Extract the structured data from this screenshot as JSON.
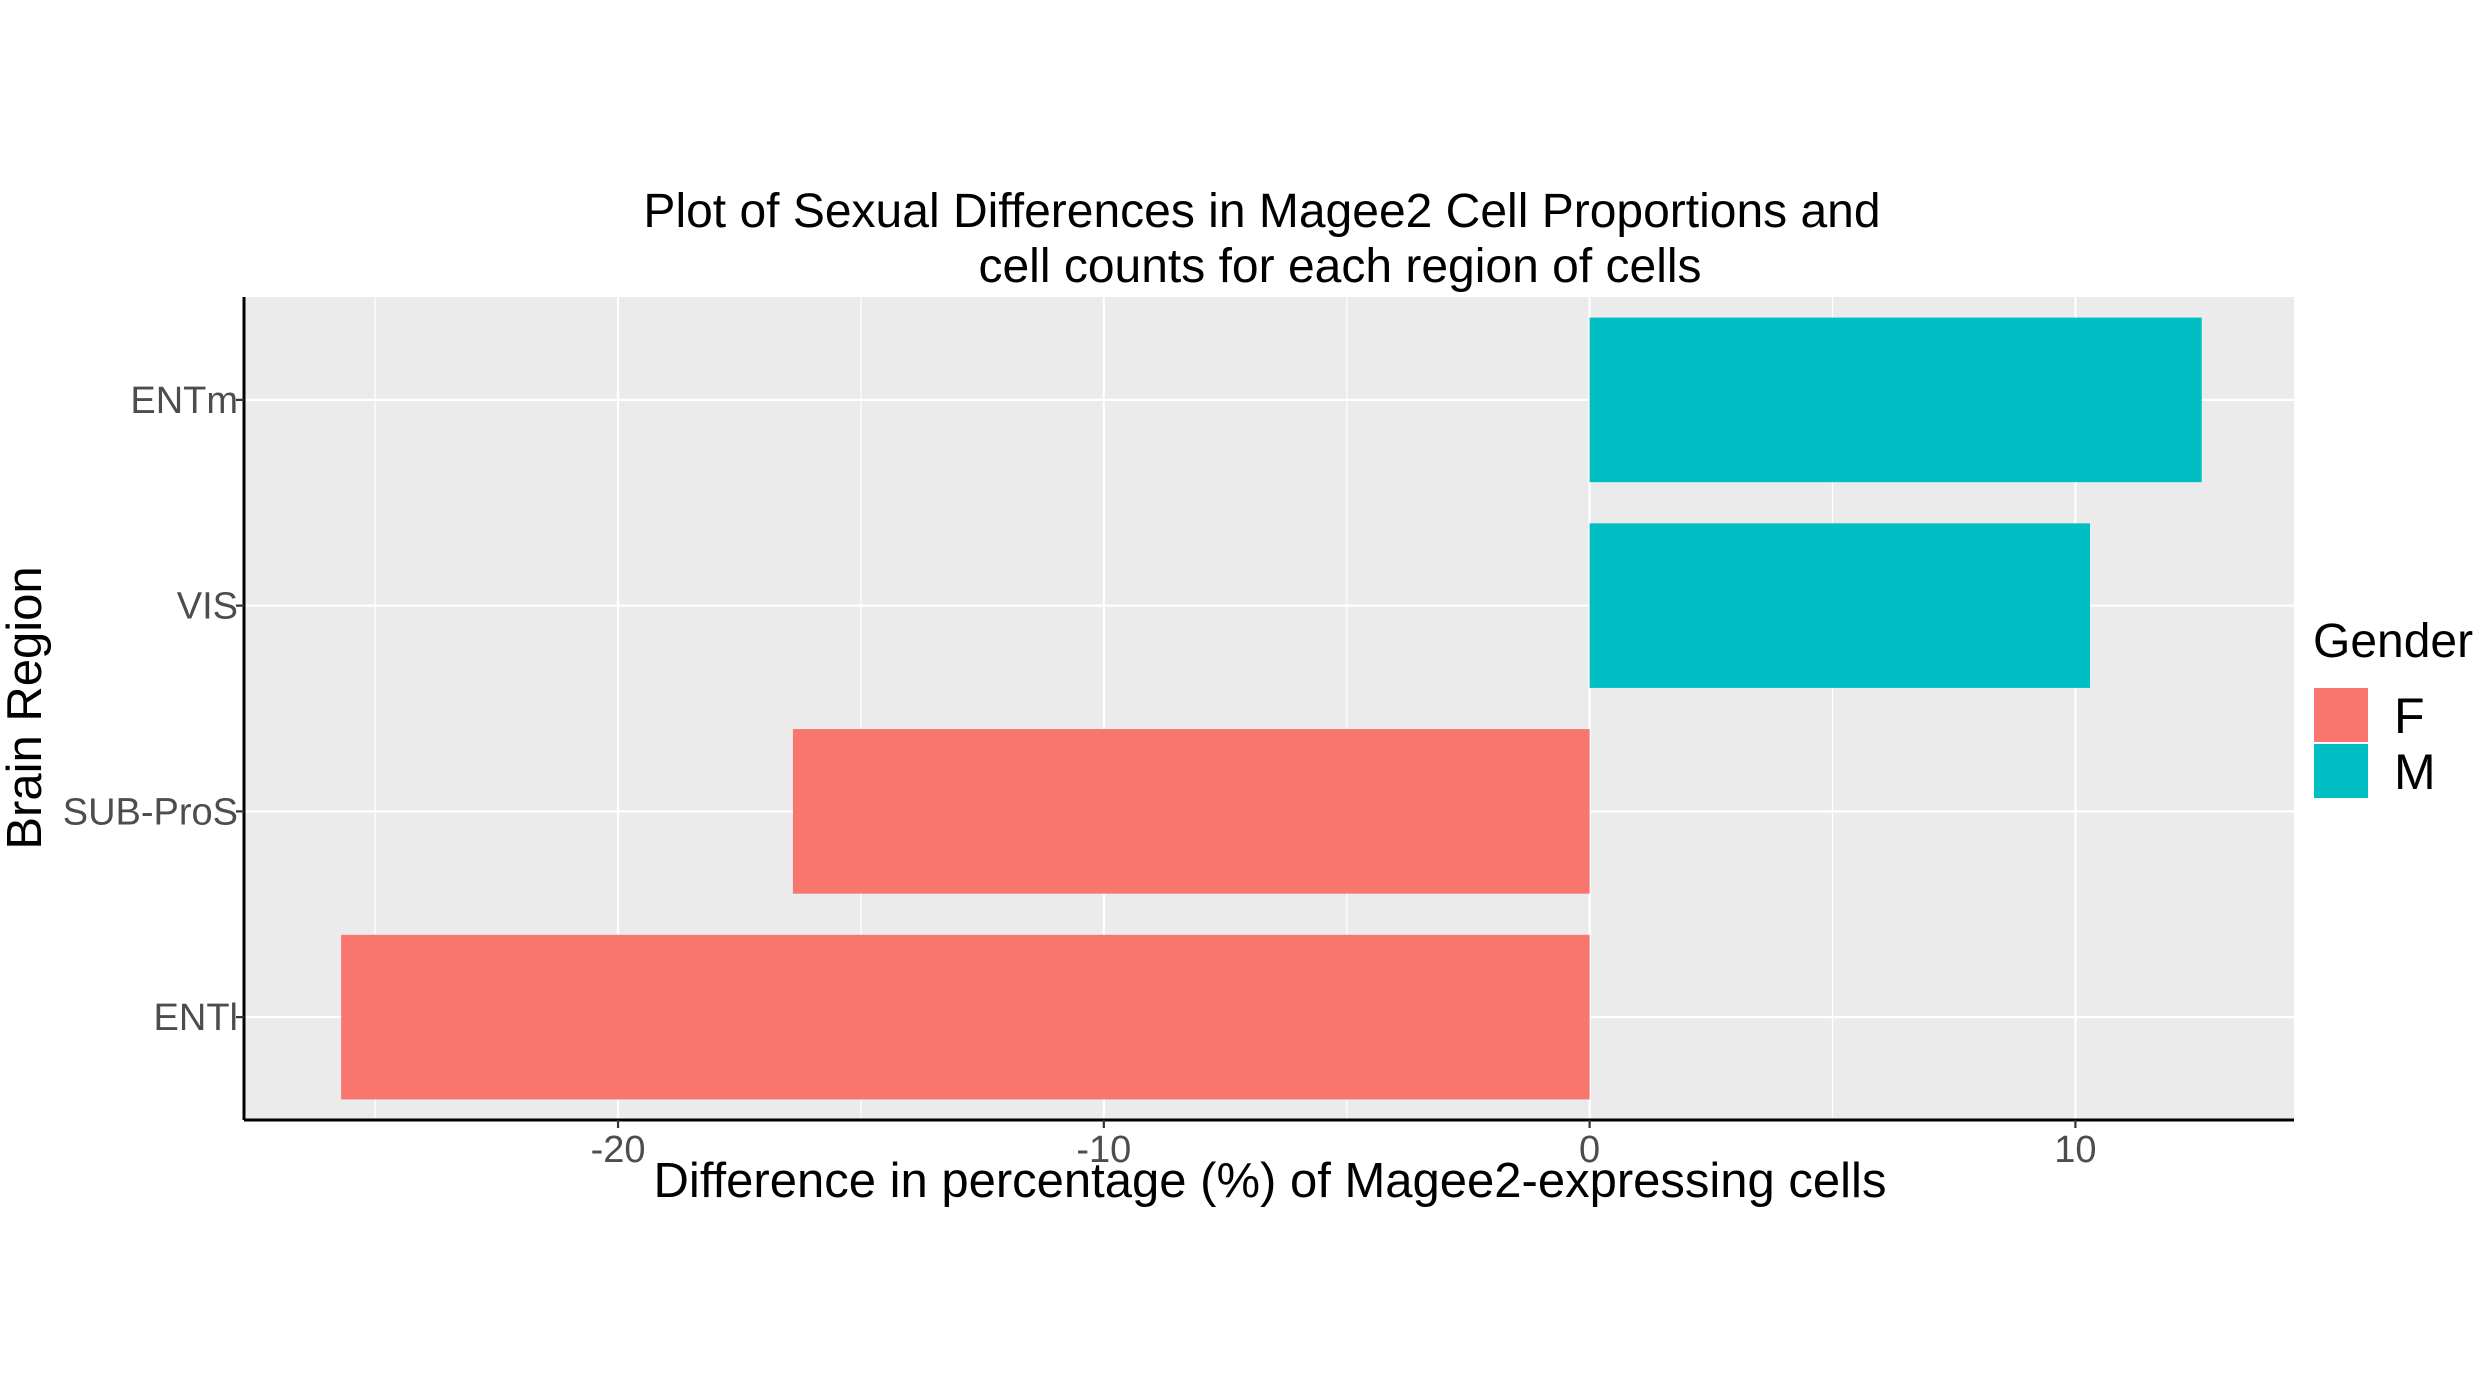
{
  "chart_data": {
    "type": "bar",
    "orientation": "horizontal",
    "title_lines": [
      "Plot of Sexual Differences in Magee2 Cell Proportions and",
      "cell counts for each region of cells"
    ],
    "xlabel": "Difference in percentage (%) of Magee2-expressing cells",
    "ylabel": "Brain Region",
    "xlim": [
      -27.7,
      14.5
    ],
    "x_ticks": [
      -20,
      -10,
      0,
      10
    ],
    "x_tick_labels": [
      "-20",
      "-10",
      "0",
      "10"
    ],
    "categories": [
      "ENTm",
      "VIS",
      "SUB-ProS",
      "ENTl"
    ],
    "values": [
      12.6,
      10.3,
      -16.4,
      -25.7
    ],
    "groups": [
      "M",
      "M",
      "F",
      "F"
    ],
    "grid": true,
    "legend": {
      "title": "Gender",
      "position": "right",
      "entries": [
        {
          "label": "F",
          "color": "#F8766D"
        },
        {
          "label": "M",
          "color": "#00BFC4"
        }
      ]
    },
    "colors": {
      "F": "#F8766D",
      "M": "#00BFC4",
      "panel": "#EBEBEB",
      "grid": "#FFFFFF"
    }
  }
}
